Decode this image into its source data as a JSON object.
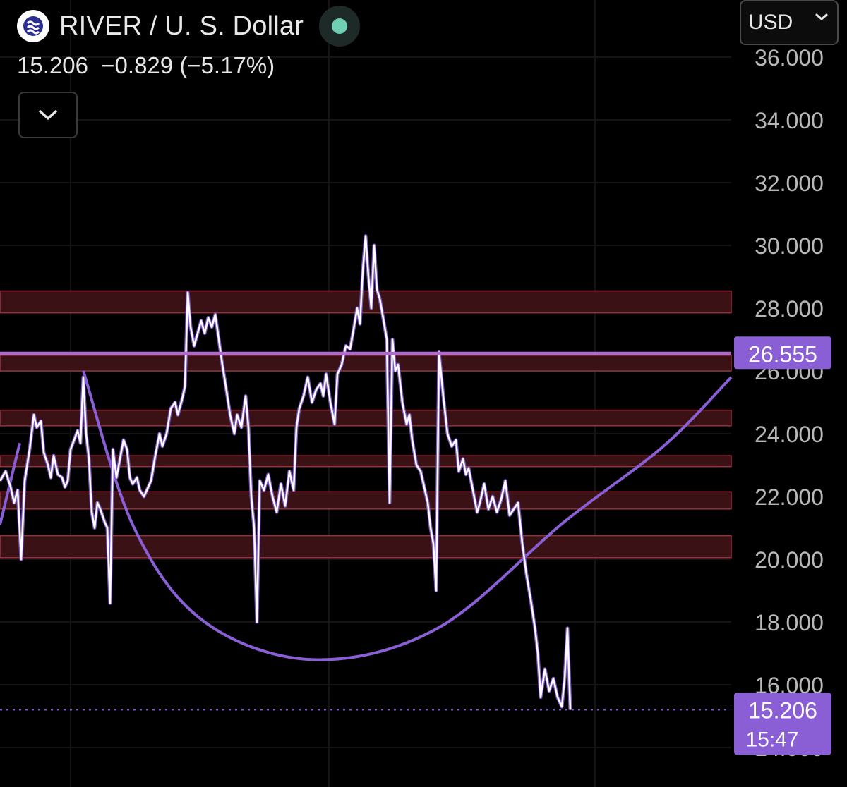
{
  "header": {
    "symbol": "RIVER / U. S. Dollar",
    "last_price": "15.206",
    "change": "−0.829",
    "change_pct": "(−5.17%)",
    "currency": "USD",
    "status_color": "#6fd0b4"
  },
  "icons": {
    "logo": "river-logo-icon",
    "collapse": "chevron-down-icon",
    "currency_dropdown": "chevron-down-icon"
  },
  "chart_data": {
    "type": "line",
    "y_ticks": [
      "14.000",
      "16.000",
      "18.000",
      "20.000",
      "22.000",
      "24.000",
      "26.000",
      "28.000",
      "30.000",
      "32.000",
      "34.000",
      "36.000"
    ],
    "y_tick_values": [
      14,
      16,
      18,
      20,
      22,
      24,
      26,
      28,
      30,
      32,
      34,
      36
    ],
    "ylim": [
      13.6,
      36.3
    ],
    "price_labels": [
      {
        "value": 26.555,
        "text": "26.555"
      },
      {
        "value": 15.206,
        "text": "15.206",
        "subtext": "15:47"
      }
    ],
    "zones": [
      {
        "low": 27.85,
        "high": 28.55
      },
      {
        "low": 26.0,
        "high": 26.5
      },
      {
        "low": 24.25,
        "high": 24.75
      },
      {
        "low": 22.95,
        "high": 23.3
      },
      {
        "low": 21.6,
        "high": 22.15
      },
      {
        "low": 20.05,
        "high": 20.75
      }
    ],
    "arc": {
      "color_line": "#8a5fd6",
      "points": [
        [
          118,
          26.0
        ],
        [
          190,
          21.0
        ],
        [
          290,
          18.0
        ],
        [
          445,
          16.8
        ],
        [
          620,
          17.8
        ],
        [
          800,
          21.2
        ],
        [
          940,
          23.6
        ],
        [
          1036,
          25.8
        ]
      ],
      "extra_segment": [
        [
          0,
          21.1
        ],
        [
          28,
          23.7
        ]
      ]
    },
    "series": [
      {
        "color": "#ffffff",
        "points": [
          [
            0,
            22.5
          ],
          [
            8,
            22.8
          ],
          [
            15,
            22.3
          ],
          [
            20,
            21.8
          ],
          [
            25,
            22.2
          ],
          [
            30,
            20.0
          ],
          [
            35,
            22.5
          ],
          [
            42,
            23.5
          ],
          [
            48,
            24.6
          ],
          [
            52,
            24.2
          ],
          [
            58,
            24.4
          ],
          [
            62,
            23.4
          ],
          [
            68,
            23.0
          ],
          [
            72,
            22.6
          ],
          [
            76,
            23.3
          ],
          [
            82,
            22.7
          ],
          [
            88,
            22.6
          ],
          [
            92,
            22.3
          ],
          [
            96,
            22.5
          ],
          [
            100,
            23.5
          ],
          [
            105,
            23.8
          ],
          [
            110,
            24.1
          ],
          [
            114,
            23.7
          ],
          [
            118,
            25.8
          ],
          [
            122,
            24.0
          ],
          [
            126,
            23.2
          ],
          [
            130,
            21.5
          ],
          [
            134,
            21.0
          ],
          [
            138,
            21.8
          ],
          [
            142,
            21.6
          ],
          [
            148,
            21.2
          ],
          [
            152,
            21.0
          ],
          [
            156,
            18.6
          ],
          [
            160,
            23.5
          ],
          [
            165,
            22.6
          ],
          [
            170,
            23.2
          ],
          [
            175,
            23.8
          ],
          [
            180,
            23.5
          ],
          [
            184,
            22.6
          ],
          [
            188,
            22.4
          ],
          [
            194,
            22.6
          ],
          [
            198,
            22.2
          ],
          [
            204,
            22.0
          ],
          [
            210,
            22.3
          ],
          [
            214,
            22.5
          ],
          [
            220,
            23.3
          ],
          [
            226,
            24.0
          ],
          [
            230,
            23.6
          ],
          [
            236,
            24.0
          ],
          [
            242,
            24.8
          ],
          [
            248,
            25.0
          ],
          [
            252,
            24.6
          ],
          [
            258,
            25.1
          ],
          [
            262,
            25.5
          ],
          [
            266,
            28.5
          ],
          [
            270,
            27.4
          ],
          [
            275,
            26.8
          ],
          [
            280,
            27.2
          ],
          [
            285,
            27.6
          ],
          [
            290,
            27.2
          ],
          [
            295,
            27.7
          ],
          [
            300,
            27.4
          ],
          [
            305,
            27.8
          ],
          [
            310,
            27.0
          ],
          [
            315,
            26.2
          ],
          [
            320,
            25.5
          ],
          [
            326,
            24.6
          ],
          [
            332,
            24.0
          ],
          [
            336,
            24.6
          ],
          [
            342,
            24.2
          ],
          [
            348,
            25.2
          ],
          [
            352,
            24.2
          ],
          [
            356,
            22.0
          ],
          [
            360,
            21.0
          ],
          [
            364,
            18.0
          ],
          [
            368,
            22.5
          ],
          [
            374,
            22.2
          ],
          [
            380,
            22.7
          ],
          [
            386,
            22.0
          ],
          [
            392,
            21.5
          ],
          [
            398,
            22.4
          ],
          [
            404,
            21.7
          ],
          [
            410,
            22.8
          ],
          [
            416,
            22.2
          ],
          [
            420,
            24.2
          ],
          [
            424,
            24.8
          ],
          [
            430,
            25.2
          ],
          [
            436,
            25.8
          ],
          [
            442,
            25.0
          ],
          [
            448,
            25.4
          ],
          [
            454,
            25.6
          ],
          [
            458,
            25.2
          ],
          [
            462,
            25.9
          ],
          [
            468,
            25.0
          ],
          [
            474,
            24.3
          ],
          [
            478,
            25.9
          ],
          [
            484,
            26.2
          ],
          [
            490,
            26.8
          ],
          [
            496,
            26.7
          ],
          [
            500,
            27.2
          ],
          [
            506,
            28.0
          ],
          [
            510,
            27.5
          ],
          [
            514,
            29.2
          ],
          [
            518,
            30.3
          ],
          [
            522,
            29.0
          ],
          [
            526,
            28.0
          ],
          [
            530,
            30.0
          ],
          [
            534,
            28.6
          ],
          [
            538,
            28.3
          ],
          [
            542,
            27.8
          ],
          [
            548,
            27.0
          ],
          [
            552,
            21.8
          ],
          [
            556,
            27.0
          ],
          [
            560,
            26.0
          ],
          [
            564,
            26.2
          ],
          [
            570,
            25.0
          ],
          [
            576,
            24.3
          ],
          [
            580,
            24.6
          ],
          [
            584,
            23.8
          ],
          [
            590,
            23.0
          ],
          [
            596,
            22.8
          ],
          [
            600,
            22.4
          ],
          [
            606,
            21.8
          ],
          [
            610,
            21.0
          ],
          [
            614,
            20.5
          ],
          [
            618,
            19.0
          ],
          [
            622,
            26.6
          ],
          [
            628,
            25.2
          ],
          [
            634,
            24.0
          ],
          [
            640,
            23.6
          ],
          [
            646,
            23.8
          ],
          [
            650,
            22.8
          ],
          [
            656,
            23.2
          ],
          [
            660,
            22.7
          ],
          [
            664,
            22.9
          ],
          [
            670,
            22.2
          ],
          [
            676,
            21.5
          ],
          [
            680,
            21.8
          ],
          [
            686,
            22.4
          ],
          [
            692,
            21.6
          ],
          [
            698,
            22.0
          ],
          [
            704,
            21.5
          ],
          [
            710,
            21.9
          ],
          [
            716,
            22.5
          ],
          [
            722,
            21.4
          ],
          [
            728,
            21.6
          ],
          [
            734,
            21.8
          ],
          [
            740,
            20.5
          ],
          [
            746,
            19.5
          ],
          [
            752,
            18.7
          ],
          [
            758,
            17.8
          ],
          [
            762,
            17.0
          ],
          [
            766,
            15.6
          ],
          [
            772,
            16.5
          ],
          [
            778,
            15.8
          ],
          [
            784,
            16.2
          ],
          [
            790,
            15.6
          ],
          [
            796,
            15.3
          ],
          [
            800,
            16.2
          ],
          [
            804,
            17.8
          ],
          [
            808,
            15.2
          ]
        ]
      }
    ]
  }
}
